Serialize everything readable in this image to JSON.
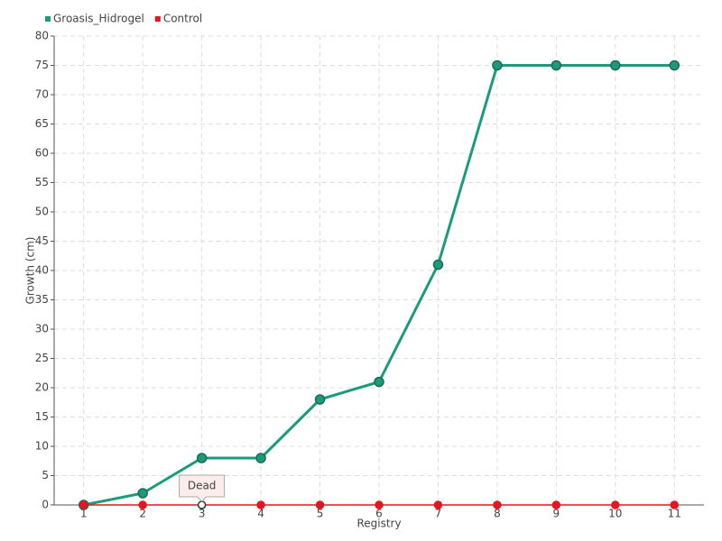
{
  "chart_data": {
    "type": "line",
    "categories": [
      "1",
      "2",
      "3",
      "4",
      "5",
      "6",
      "7",
      "8",
      "9",
      "10",
      "11"
    ],
    "series": [
      {
        "name": "Groasis_Hidrogel",
        "color": "#1a9b7c",
        "values": [
          0,
          2,
          8,
          8,
          18,
          21,
          41,
          75,
          75,
          75,
          75
        ]
      },
      {
        "name": "Control",
        "color": "#e8141e",
        "values": [
          0,
          0,
          0,
          0,
          0,
          0,
          0,
          0,
          0,
          0,
          0
        ]
      }
    ],
    "xlabel": "Registry",
    "ylabel": "Growth (cm)",
    "ylim": [
      0,
      80
    ],
    "yticks": [
      0,
      5,
      10,
      15,
      20,
      25,
      30,
      35,
      40,
      45,
      50,
      55,
      60,
      65,
      70,
      75,
      80
    ],
    "grid": true,
    "legend": "top-left",
    "annotation": {
      "text": "Dead",
      "x": "3",
      "series": "Control"
    }
  }
}
